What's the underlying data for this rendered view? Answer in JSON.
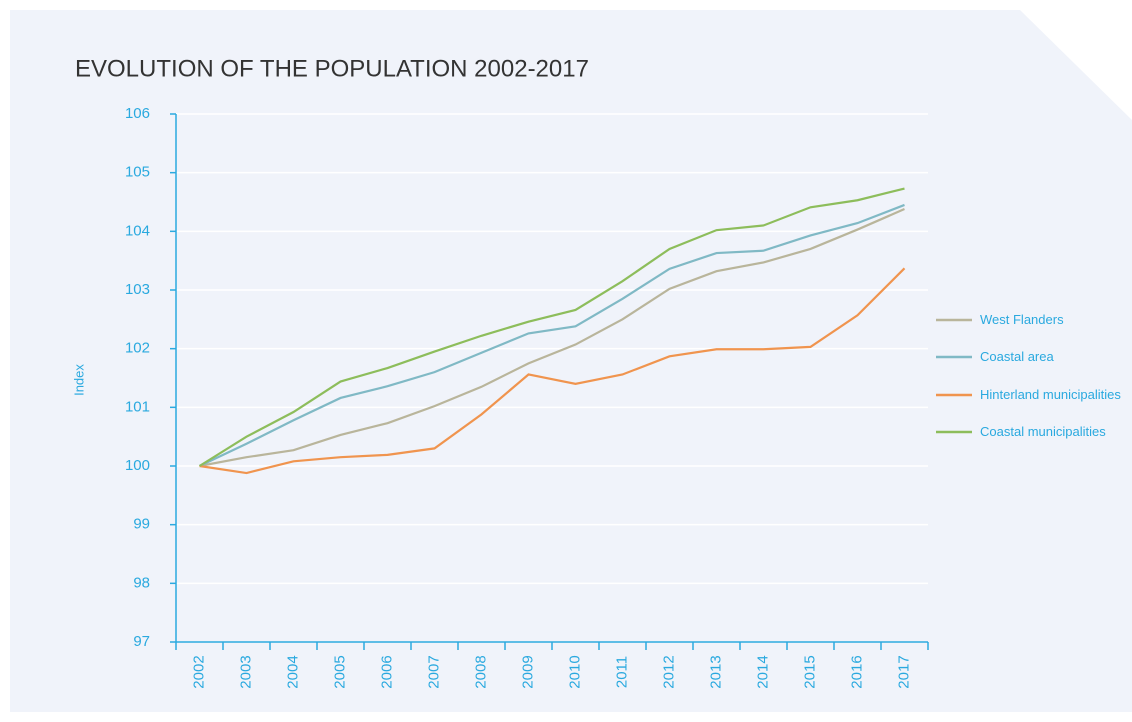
{
  "chart_data": {
    "type": "line",
    "title": "EVOLUTION OF THE POPULATION 2002-2017",
    "y_label": "Index",
    "categories": [
      "2002",
      "2003",
      "2004",
      "2005",
      "2006",
      "2007",
      "2008",
      "2009",
      "2010",
      "2011",
      "2012",
      "2013",
      "2014",
      "2015",
      "2016",
      "2017"
    ],
    "series": [
      {
        "name": "West Flanders",
        "color": "#b9b59b",
        "values": [
          100,
          100.15,
          100.27,
          100.53,
          100.73,
          101.02,
          101.35,
          101.75,
          102.07,
          102.5,
          103.02,
          103.32,
          103.47,
          103.7,
          104.03,
          104.38
        ]
      },
      {
        "name": "Coastal area",
        "color": "#80b9c5",
        "values": [
          100,
          100.38,
          100.78,
          101.16,
          101.36,
          101.6,
          101.93,
          102.26,
          102.38,
          102.85,
          103.36,
          103.63,
          103.67,
          103.93,
          104.14,
          104.45
        ]
      },
      {
        "name": "Hinterland municipalities",
        "color": "#f0944e",
        "values": [
          100,
          99.88,
          100.08,
          100.15,
          100.19,
          100.3,
          100.88,
          101.56,
          101.4,
          101.56,
          101.87,
          101.99,
          101.99,
          102.03,
          102.57,
          103.37
        ]
      },
      {
        "name": "Coastal municipalities",
        "color": "#8dbd5b",
        "values": [
          100,
          100.5,
          100.92,
          101.44,
          101.67,
          101.95,
          102.22,
          102.46,
          102.66,
          103.15,
          103.7,
          104.02,
          104.1,
          104.41,
          104.53,
          104.73
        ]
      }
    ],
    "ylim": [
      97,
      106
    ],
    "yticks": [
      97,
      98,
      99,
      100,
      101,
      102,
      103,
      104,
      105,
      106
    ],
    "grid": true,
    "legend": "right"
  }
}
